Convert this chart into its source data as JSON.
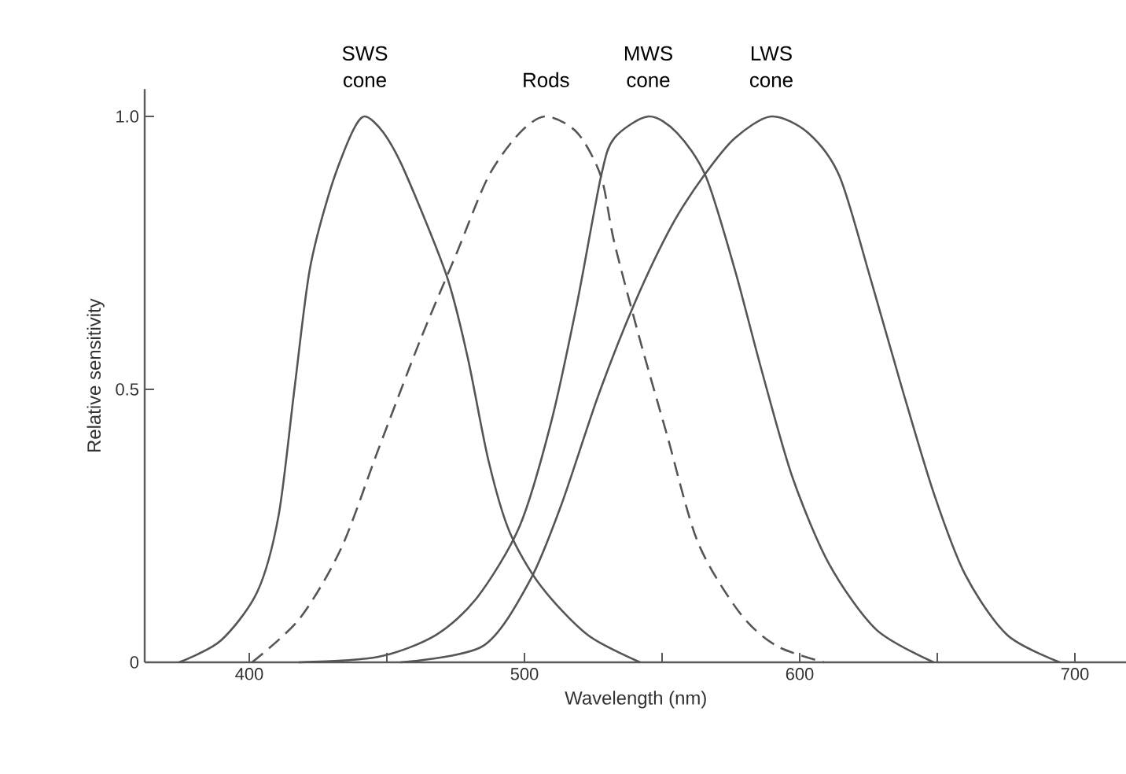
{
  "chart_data": {
    "type": "line",
    "xlabel": "Wavelength (nm)",
    "ylabel": "Relative sensitivity",
    "xlim": [
      362,
      719
    ],
    "ylim": [
      0,
      1.05
    ],
    "xticks": [
      400,
      {
        "value": 450,
        "label": null
      },
      500,
      {
        "value": 550,
        "label": null
      },
      600,
      {
        "value": 650,
        "label": null
      },
      700
    ],
    "yticks": [
      0,
      0.5,
      {
        "value": 1,
        "label": "1.0"
      }
    ],
    "grid": false,
    "line_style": "solid",
    "series": [
      {
        "name": "SWS cone",
        "color": "#555555",
        "x": [
          374.5,
          389.7,
          403,
          410.7,
          416.4,
          422,
          429.7,
          437.3,
          442,
          448.8,
          456.4,
          471.6,
          479.3,
          486.9,
          494.5,
          505.9,
          523,
          542
        ],
        "values": [
          0,
          0.04,
          0.13,
          0.27,
          0.5,
          0.72,
          0.87,
          0.97,
          1.0,
          0.97,
          0.9,
          0.71,
          0.56,
          0.37,
          0.24,
          0.14,
          0.05,
          0
        ]
      },
      {
        "name": "Rods",
        "color": "#555555",
        "line_style": "dashed",
        "x": [
          401,
          418.3,
          433.5,
          446.9,
          462.1,
          475.4,
          486.9,
          498.3,
          507.8,
          519.2,
          527.8,
          532.6,
          542,
          551.6,
          563,
          578.3,
          591.6,
          608.8
        ],
        "values": [
          0,
          0.08,
          0.21,
          0.39,
          0.59,
          0.75,
          0.89,
          0.97,
          1.0,
          0.97,
          0.89,
          0.77,
          0.59,
          0.42,
          0.22,
          0.09,
          0.03,
          0
        ]
      },
      {
        "name": "MWS cone",
        "color": "#555555",
        "x": [
          418,
          446.9,
          467.8,
          483,
          498.3,
          509.7,
          519.2,
          527.8,
          532.6,
          545,
          555.4,
          565.9,
          576.4,
          585.9,
          597.3,
          610.7,
          627.8,
          648.7
        ],
        "values": [
          0,
          0.01,
          0.05,
          0.12,
          0.25,
          0.44,
          0.66,
          0.89,
          0.96,
          1.0,
          0.97,
          0.89,
          0.72,
          0.54,
          0.34,
          0.18,
          0.06,
          0
        ]
      },
      {
        "name": "LWS cone",
        "color": "#555555",
        "x": [
          455,
          485,
          502,
          513.5,
          526.9,
          540.2,
          553.5,
          565,
          576.4,
          589.7,
          603,
          614.5,
          625.9,
          637.3,
          648.7,
          660.2,
          675.4,
          694.5
        ],
        "values": [
          0,
          0.03,
          0.15,
          0.29,
          0.49,
          0.66,
          0.8,
          0.89,
          0.96,
          1.0,
          0.97,
          0.89,
          0.7,
          0.5,
          0.31,
          0.16,
          0.05,
          0
        ]
      }
    ]
  }
}
